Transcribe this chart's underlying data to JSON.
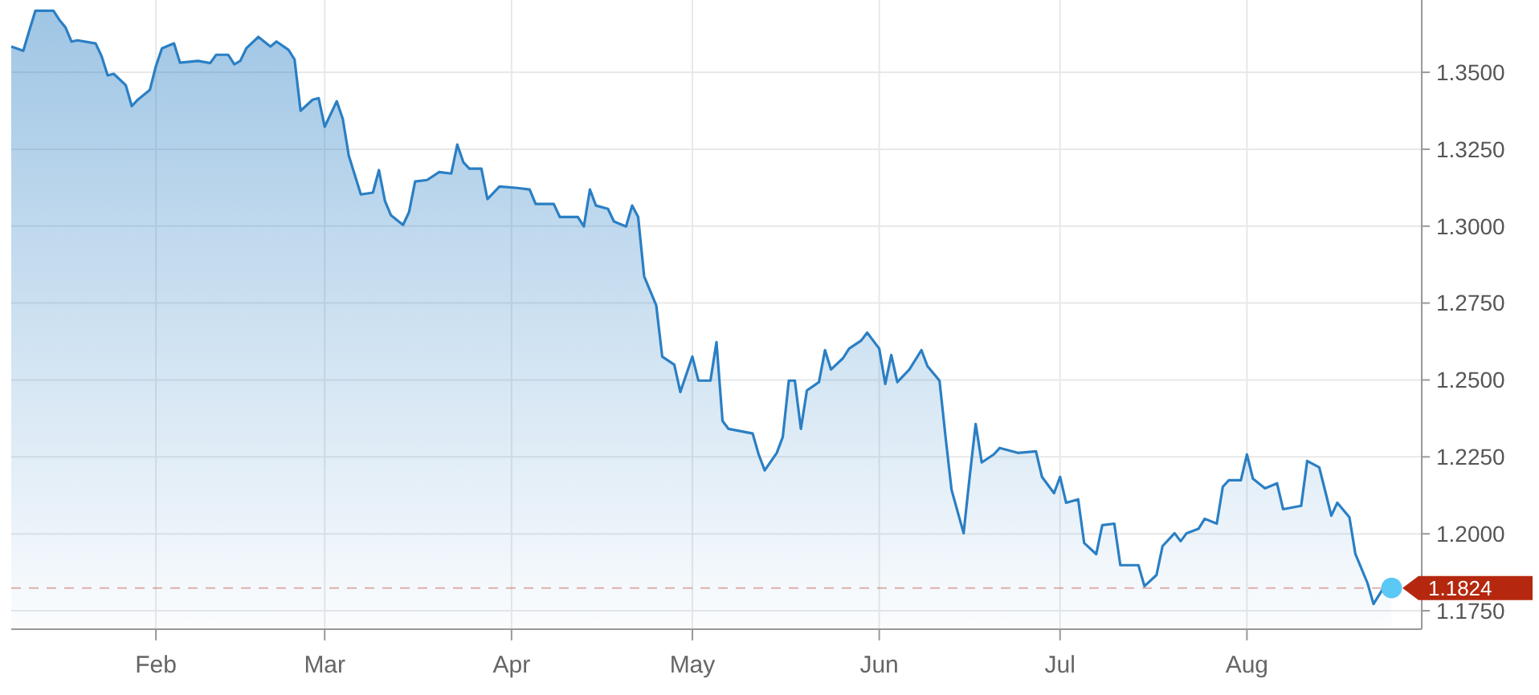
{
  "chart_data": {
    "type": "area",
    "x": [
      "--01-08",
      "--01-10",
      "--01-11",
      "--01-12",
      "--01-15",
      "--01-16",
      "--01-17",
      "--01-18",
      "--01-19",
      "--01-22",
      "--01-23",
      "--01-24",
      "--01-25",
      "--01-27",
      "--01-28",
      "--01-29",
      "--01-31",
      "--02-01",
      "--02-02",
      "--02-04",
      "--02-05",
      "--02-08",
      "--02-10",
      "--02-11",
      "--02-13",
      "--02-14",
      "--02-15",
      "--02-16",
      "--02-18",
      "--02-20",
      "--02-21",
      "--02-23",
      "--02-24",
      "--02-25",
      "--02-27",
      "--02-28",
      "--03-01",
      "--03-03",
      "--03-04",
      "--03-05",
      "--03-07",
      "--03-09",
      "--03-10",
      "--03-11",
      "--03-12",
      "--03-14",
      "--03-15",
      "--03-16",
      "--03-18",
      "--03-20",
      "--03-22",
      "--03-23",
      "--03-24",
      "--03-25",
      "--03-27",
      "--03-28",
      "--03-30",
      "--04-02",
      "--04-04",
      "--04-05",
      "--04-08",
      "--04-09",
      "--04-12",
      "--04-13",
      "--04-14",
      "--04-15",
      "--04-17",
      "--04-18",
      "--04-20",
      "--04-21",
      "--04-22",
      "--04-23",
      "--04-25",
      "--04-26",
      "--04-28",
      "--04-29",
      "--05-01",
      "--05-02",
      "--05-04",
      "--05-05",
      "--05-06",
      "--05-07",
      "--05-11",
      "--05-12",
      "--05-13",
      "--05-15",
      "--05-16",
      "--05-17",
      "--05-18",
      "--05-19",
      "--05-20",
      "--05-22",
      "--05-23",
      "--05-24",
      "--05-26",
      "--05-27",
      "--05-29",
      "--05-30",
      "--06-01",
      "--06-02",
      "--06-03",
      "--06-04",
      "--06-06",
      "--06-08",
      "--06-09",
      "--06-11",
      "--06-12",
      "--06-13",
      "--06-15",
      "--06-16",
      "--06-17",
      "--06-18",
      "--06-20",
      "--06-21",
      "--06-24",
      "--06-27",
      "--06-28",
      "--06-30",
      "--07-01",
      "--07-02",
      "--07-04",
      "--07-05",
      "--07-07",
      "--07-08",
      "--07-10",
      "--07-11",
      "--07-14",
      "--07-15",
      "--07-17",
      "--07-18",
      "--07-20",
      "--07-21",
      "--07-22",
      "--07-24",
      "--07-25",
      "--07-27",
      "--07-28",
      "--07-29",
      "--07-31",
      "--08-01",
      "--08-02",
      "--08-04",
      "--08-06",
      "--08-07",
      "--08-10",
      "--08-11",
      "--08-13",
      "--08-14",
      "--08-15",
      "--08-16",
      "--08-18",
      "--08-19",
      "--08-21",
      "--08-22",
      "--08-24",
      "--08-25"
    ],
    "series": [
      {
        "color": "#2a7fc4",
        "values": [
          1.3584,
          1.357,
          1.3636,
          1.37,
          1.37,
          1.367,
          1.3646,
          1.36,
          1.3604,
          1.3594,
          1.3552,
          1.349,
          1.3495,
          1.3458,
          1.339,
          1.3411,
          1.3443,
          1.352,
          1.3578,
          1.3594,
          1.3531,
          1.3537,
          1.353,
          1.3557,
          1.3557,
          1.3526,
          1.3537,
          1.3578,
          1.3615,
          1.3584,
          1.36,
          1.3573,
          1.3542,
          1.3375,
          1.3411,
          1.3416,
          1.3323,
          1.3406,
          1.3349,
          1.3229,
          1.3103,
          1.3109,
          1.3182,
          1.3082,
          1.3035,
          1.3004,
          1.3046,
          1.3145,
          1.315,
          1.3176,
          1.3171,
          1.3265,
          1.3208,
          1.3187,
          1.3187,
          1.3088,
          1.3129,
          1.3124,
          1.3119,
          1.3072,
          1.3072,
          1.303,
          1.303,
          1.2999,
          1.3119,
          1.3067,
          1.3056,
          1.3015,
          1.2999,
          1.3067,
          1.303,
          1.2837,
          1.2743,
          1.2576,
          1.255,
          1.2461,
          1.2576,
          1.2498,
          1.2498,
          1.2623,
          1.2367,
          1.2341,
          1.2326,
          1.2258,
          1.2206,
          1.2263,
          1.2315,
          1.2498,
          1.2498,
          1.2341,
          1.2466,
          1.2493,
          1.2597,
          1.2534,
          1.2571,
          1.2602,
          1.2628,
          1.2654,
          1.2602,
          1.2487,
          1.2581,
          1.2493,
          1.2534,
          1.2597,
          1.2545,
          1.2498,
          1.2315,
          1.2143,
          1.2002,
          1.2185,
          1.2357,
          1.2232,
          1.2258,
          1.2279,
          1.2263,
          1.2268,
          1.2185,
          1.2132,
          1.2185,
          1.2101,
          1.2112,
          1.197,
          1.1934,
          1.2028,
          1.2033,
          1.1898,
          1.1898,
          1.183,
          1.1866,
          1.196,
          1.2002,
          1.1976,
          1.2002,
          1.2017,
          1.2049,
          1.2033,
          1.2153,
          1.2174,
          1.2174,
          1.2258,
          1.2179,
          1.2148,
          1.2164,
          1.208,
          1.2091,
          1.2237,
          1.2216,
          1.2138,
          1.2059,
          1.2101,
          1.2054,
          1.1934,
          1.184,
          1.1772,
          1.1835,
          1.1824
        ]
      },
      {
        "type": "scatter",
        "marker": "circle",
        "color": "#5bc8f5",
        "x": [
          "--08-25"
        ],
        "values": [
          1.1824
        ]
      }
    ],
    "xlim": [
      "--01-08",
      "--08-30"
    ],
    "xticks": [
      {
        "value": "--02-01",
        "label": "Feb"
      },
      {
        "value": "--03-01",
        "label": "Mar"
      },
      {
        "value": "--04-01",
        "label": "Apr"
      },
      {
        "value": "--05-01",
        "label": "May"
      },
      {
        "value": "--06-01",
        "label": "Jun"
      },
      {
        "value": "--07-01",
        "label": "Jul"
      },
      {
        "value": "--08-01",
        "label": "Aug"
      }
    ],
    "ylim": [
      1.169,
      1.3735
    ],
    "yticks": [
      {
        "value": 1.175,
        "label": "1.1750"
      },
      {
        "value": 1.2,
        "label": "1.2000"
      },
      {
        "value": 1.225,
        "label": "1.2250"
      },
      {
        "value": 1.25,
        "label": "1.2500"
      },
      {
        "value": 1.275,
        "label": "1.2750"
      },
      {
        "value": 1.3,
        "label": "1.3000"
      },
      {
        "value": 1.325,
        "label": "1.3250"
      },
      {
        "value": 1.35,
        "label": "1.3500"
      }
    ],
    "ref_lines": [
      {
        "axis": "y",
        "value": 1.1824,
        "label": "1.1824",
        "color": "#b5280f",
        "line_style": "dashed"
      }
    ],
    "grid": true
  }
}
